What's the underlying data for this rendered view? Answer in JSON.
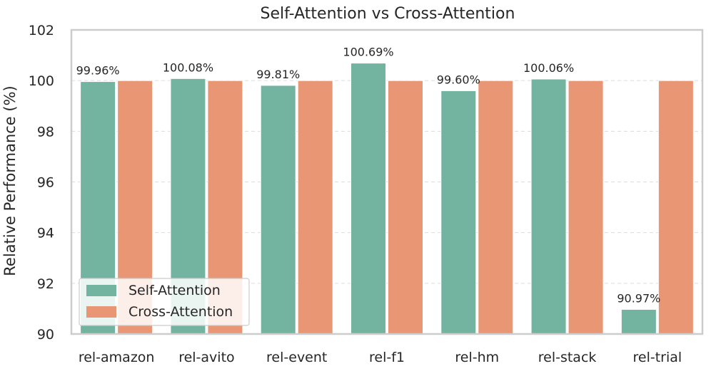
{
  "chart_data": {
    "type": "bar",
    "title": "Self-Attention vs Cross-Attention",
    "xlabel": "",
    "ylabel": "Relative Performance (%)",
    "ylim": [
      90,
      102
    ],
    "yticks": [
      90,
      92,
      94,
      96,
      98,
      100,
      102
    ],
    "grid": "horizontal dashed",
    "legend_position": "lower-left",
    "categories": [
      "rel-amazon",
      "rel-avito",
      "rel-event",
      "rel-f1",
      "rel-hm",
      "rel-stack",
      "rel-trial"
    ],
    "series": [
      {
        "name": "Self-Attention",
        "color": "#72b4a0",
        "values": [
          99.96,
          100.08,
          99.81,
          100.69,
          99.6,
          100.06,
          90.97
        ],
        "data_labels": [
          "99.96%",
          "100.08%",
          "99.81%",
          "100.69%",
          "99.60%",
          "100.06%",
          "90.97%"
        ]
      },
      {
        "name": "Cross-Attention",
        "color": "#e99675",
        "values": [
          100,
          100,
          100,
          100,
          100,
          100,
          100
        ]
      }
    ]
  }
}
